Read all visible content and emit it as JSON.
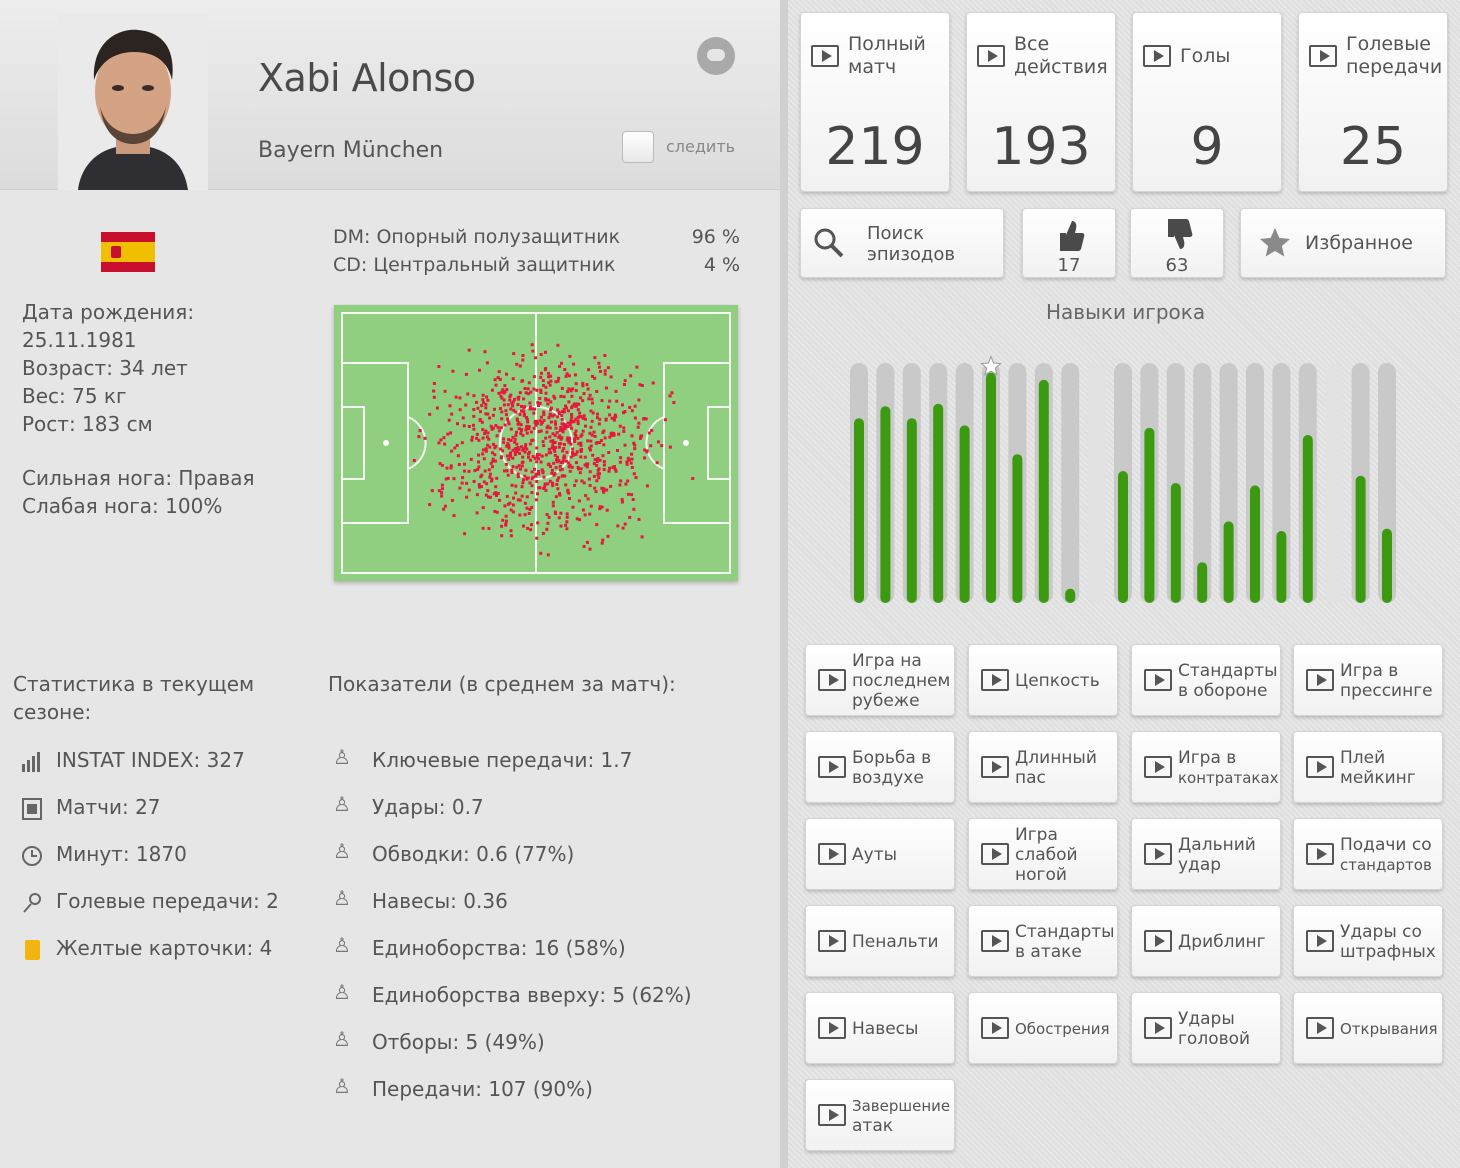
{
  "player": {
    "name": "Xabi Alonso",
    "club": "Bayern München",
    "follow_label": "следить"
  },
  "bio": {
    "birth_label": "Дата рождения:",
    "birth_date": "25.11.1981",
    "age": "Возраст: 34 лет",
    "weight": "Вес: 75 кг",
    "height": "Рост: 183 см",
    "strong_foot": "Сильная нога: Правая",
    "weak_foot": "Слабая нога: 100%"
  },
  "positions": [
    {
      "label": "DM:  Опорный полузащитник",
      "pct": "96 %"
    },
    {
      "label": "CD:  Центральный защитник",
      "pct": "4 %"
    }
  ],
  "season": {
    "title_line1": "Статистика в текущем",
    "title_line2": "сезоне:",
    "items": [
      {
        "icon": "bar-chart-icon",
        "text": "INSTAT INDEX: 327"
      },
      {
        "icon": "film-icon",
        "text": "Матчи: 27"
      },
      {
        "icon": "clock-icon",
        "text": "Минут: 1870"
      },
      {
        "icon": "assist-icon",
        "text": "Голевые передачи: 2"
      },
      {
        "icon": "yellow-card-icon",
        "text": "Желтые карточки: 4"
      }
    ]
  },
  "averages": {
    "title": "Показатели (в среднем за матч):",
    "items": [
      {
        "icon": "key-pass-icon",
        "text": "Ключевые передачи: 1.7"
      },
      {
        "icon": "shot-icon",
        "text": "Удары: 0.7"
      },
      {
        "icon": "dribble-icon",
        "text": "Обводки: 0.6 (77%)"
      },
      {
        "icon": "cross-icon",
        "text": "Навесы: 0.36"
      },
      {
        "icon": "duel-icon",
        "text": "Единоборства: 16 (58%)"
      },
      {
        "icon": "air-duel-icon",
        "text": "Единоборства вверху: 5 (62%)"
      },
      {
        "icon": "tackle-icon",
        "text": "Отборы: 5 (49%)"
      },
      {
        "icon": "pass-icon",
        "text": "Передачи: 107 (90%)"
      }
    ]
  },
  "video_cards": [
    {
      "label1": "Полный",
      "label2": "матч",
      "value": "219"
    },
    {
      "label1": "Все",
      "label2": "действия",
      "value": "193"
    },
    {
      "label1": "Голы",
      "label2": "",
      "value": "9"
    },
    {
      "label1": "Голевые",
      "label2": "передачи",
      "value": "25"
    }
  ],
  "tools": {
    "search_line1": "Поиск",
    "search_line2": "эпизодов",
    "likes": "17",
    "dislikes": "63",
    "favorites": "Избранное"
  },
  "skills": {
    "title": "Навыки игрока",
    "levels": [
      0.77,
      0.82,
      0.77,
      0.83,
      0.74,
      0.96,
      0.62,
      0.93,
      0.06,
      null,
      0.55,
      0.73,
      0.5,
      0.17,
      0.34,
      0.49,
      0.3,
      0.7,
      null,
      0.53,
      0.31
    ],
    "star_index": 5,
    "bar_color": "#3c9a10"
  },
  "skill_buttons": [
    [
      "Игра на",
      "последнем",
      "рубеже"
    ],
    [
      "Цепкость"
    ],
    [
      "Стандарты",
      "в обороне"
    ],
    [
      "Игра в",
      "прессинге"
    ],
    [
      "Борьба в",
      "воздухе"
    ],
    [
      "Длинный",
      "пас"
    ],
    [
      "Игра в",
      "контратаках"
    ],
    [
      "Плей",
      "мейкинг"
    ],
    [
      "Ауты"
    ],
    [
      "Игра",
      "слабой",
      "ногой"
    ],
    [
      "Дальний",
      "удар"
    ],
    [
      "Подачи со",
      "стандартов"
    ],
    [
      "Пенальти"
    ],
    [
      "Стандарты",
      "в атаке"
    ],
    [
      "Дриблинг"
    ],
    [
      "Удары со",
      "штрафных"
    ],
    [
      "Навесы"
    ],
    [
      "Обострения"
    ],
    [
      "Удары",
      "головой"
    ],
    [
      "Открывания"
    ],
    [
      "Завершение",
      "атак"
    ]
  ],
  "colors": {
    "pitch": "#8fcf7f",
    "heat_dot": "#e8173d"
  }
}
